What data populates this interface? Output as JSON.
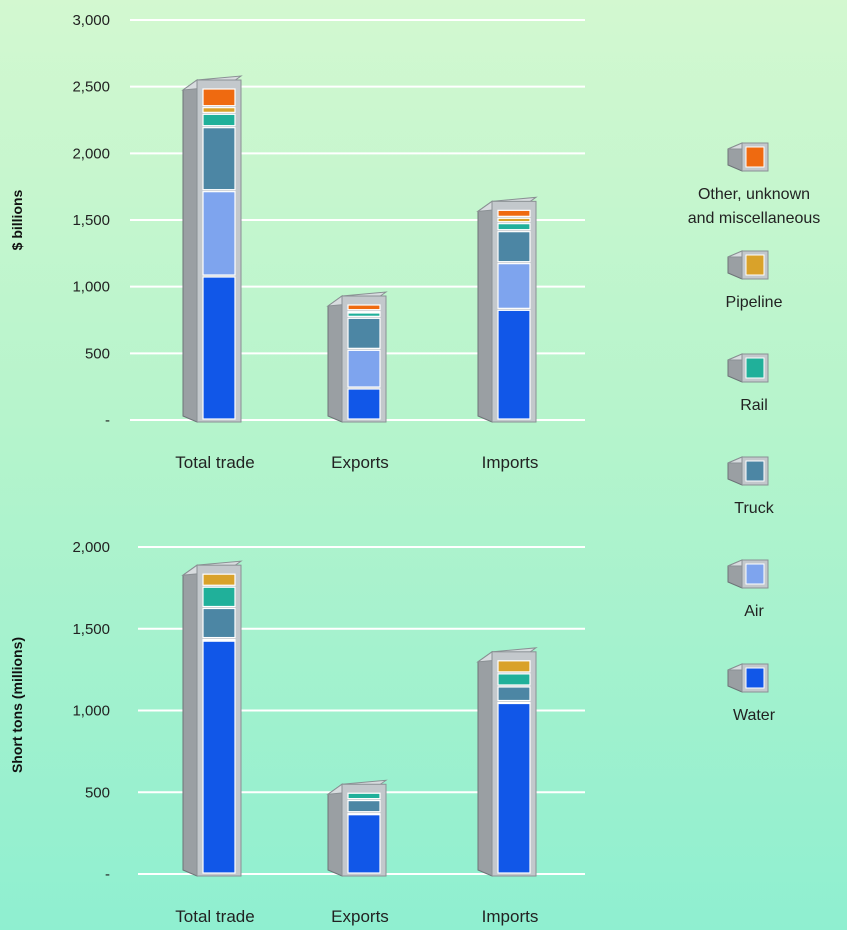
{
  "legend": [
    {
      "key": "other",
      "label_lines": [
        "Other, unknown",
        "and miscellaneous"
      ],
      "color": "#ef6a10"
    },
    {
      "key": "pipeline",
      "label_lines": [
        "Pipeline"
      ],
      "color": "#d9a22a"
    },
    {
      "key": "rail",
      "label_lines": [
        "Rail"
      ],
      "color": "#20b09a"
    },
    {
      "key": "truck",
      "label_lines": [
        "Truck"
      ],
      "color": "#4c86a4"
    },
    {
      "key": "air",
      "label_lines": [
        "Air"
      ],
      "color": "#7ea4ee"
    },
    {
      "key": "water",
      "label_lines": [
        "Water"
      ],
      "color": "#1157e8"
    }
  ],
  "chart_data": [
    {
      "type": "bar",
      "stacked": true,
      "ylabel": "$ billions",
      "ylim": [
        0,
        3000
      ],
      "yticks": [
        0,
        500,
        1000,
        1500,
        2000,
        2500,
        3000
      ],
      "ytick_labels": [
        "-",
        "500",
        "1,000",
        "1,500",
        "2,000",
        "2,500",
        "3,000"
      ],
      "categories": [
        "Total trade",
        "Exports",
        "Imports"
      ],
      "series": [
        {
          "key": "water",
          "values": [
            1080,
            240,
            830
          ]
        },
        {
          "key": "air",
          "values": [
            640,
            290,
            350
          ]
        },
        {
          "key": "truck",
          "values": [
            480,
            240,
            240
          ]
        },
        {
          "key": "rail",
          "values": [
            100,
            40,
            60
          ]
        },
        {
          "key": "pipeline",
          "values": [
            50,
            10,
            40
          ]
        },
        {
          "key": "other",
          "values": [
            140,
            50,
            60
          ]
        }
      ]
    },
    {
      "type": "bar",
      "stacked": true,
      "ylabel": "Short tons (millions)",
      "ylim": [
        0,
        2000
      ],
      "yticks": [
        0,
        500,
        1000,
        1500,
        2000
      ],
      "ytick_labels": [
        "-",
        "500",
        "1,000",
        "1,500",
        "2,000"
      ],
      "categories": [
        "Total trade",
        "Exports",
        "Imports"
      ],
      "series": [
        {
          "key": "water",
          "values": [
            1430,
            370,
            1050
          ]
        },
        {
          "key": "air",
          "values": [
            10,
            5,
            5
          ]
        },
        {
          "key": "truck",
          "values": [
            190,
            80,
            95
          ]
        },
        {
          "key": "rail",
          "values": [
            130,
            45,
            80
          ]
        },
        {
          "key": "pipeline",
          "values": [
            80,
            0,
            80
          ]
        },
        {
          "key": "other",
          "values": [
            0,
            0,
            0
          ]
        }
      ]
    }
  ]
}
